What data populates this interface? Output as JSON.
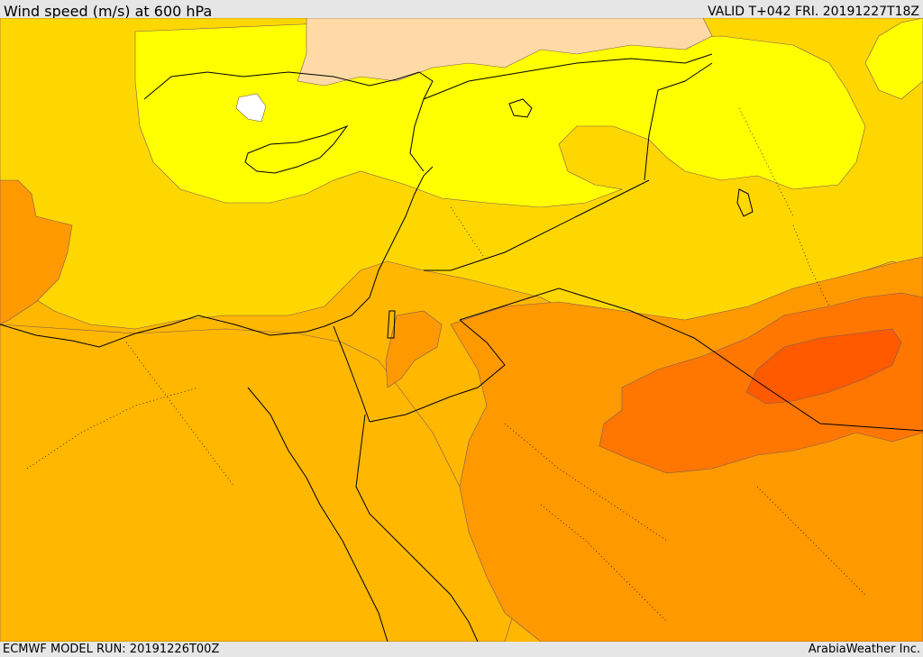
{
  "header": {
    "title": "Wind speed (m/s) at 600 hPa",
    "valid": "VALID T+042 FRI. 20191227T18Z"
  },
  "footer": {
    "model_run": "ECMWF MODEL RUN: 20191226T00Z",
    "credit": "ArabiaWeather Inc."
  },
  "colors": {
    "ocean_background": "#ffb700",
    "fill_lightest": "#ffdaa6",
    "fill_yellow": "#ffff00",
    "fill_gold": "#ffd700",
    "fill_amber": "#ffb700",
    "fill_orange": "#ff9900",
    "fill_dark_orange": "#ff7700",
    "fill_red_orange": "#ff5a00",
    "coastline": "#000000"
  }
}
